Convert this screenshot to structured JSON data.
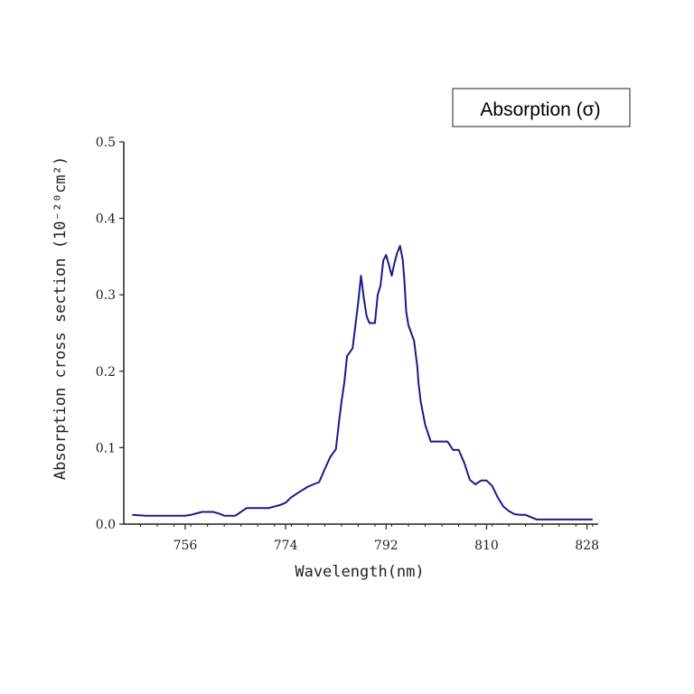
{
  "chart_data": {
    "type": "line",
    "title": "",
    "xlabel": "Wavelength(nm)",
    "ylabel": "Absorption cross section (10⁻²⁰cm²)",
    "xlim": [
      745,
      830
    ],
    "ylim": [
      0,
      0.5
    ],
    "x_ticks": [
      "756",
      "774",
      "792",
      "810",
      "828"
    ],
    "y_ticks": [
      "0.0",
      "0.1",
      "0.2",
      "0.3",
      "0.4",
      "0.5"
    ],
    "grid": false,
    "legend_position": "top-right",
    "series": [
      {
        "name": "Absorption (σ)",
        "color": "#1a1a8c",
        "x": [
          746.5,
          749,
          752,
          754,
          756,
          757,
          759,
          761,
          762,
          763,
          765,
          767,
          769,
          771,
          773,
          774,
          775,
          776,
          778,
          780,
          781,
          782,
          783,
          783.5,
          784,
          784.5,
          785,
          786,
          786.5,
          787,
          787.5,
          788,
          788.5,
          789,
          789.5,
          790,
          790.5,
          791,
          791.5,
          792,
          792.5,
          793,
          793.5,
          794,
          794.5,
          795,
          795.3,
          795.6,
          796,
          797,
          797.6,
          797.8,
          798.2,
          799,
          800,
          801,
          802,
          803,
          804,
          805,
          806,
          807,
          808,
          809,
          810,
          811,
          812,
          813,
          814,
          815,
          816,
          817,
          818,
          819,
          820,
          821,
          822,
          823,
          824,
          825,
          826,
          827,
          828,
          829
        ],
        "values": [
          0.012,
          0.011,
          0.011,
          0.011,
          0.011,
          0.012,
          0.016,
          0.016,
          0.014,
          0.011,
          0.011,
          0.021,
          0.021,
          0.021,
          0.025,
          0.028,
          0.035,
          0.04,
          0.049,
          0.055,
          0.072,
          0.088,
          0.098,
          0.13,
          0.16,
          0.185,
          0.22,
          0.23,
          0.26,
          0.29,
          0.325,
          0.296,
          0.272,
          0.263,
          0.263,
          0.263,
          0.3,
          0.312,
          0.345,
          0.352,
          0.339,
          0.325,
          0.342,
          0.355,
          0.364,
          0.345,
          0.315,
          0.278,
          0.26,
          0.24,
          0.205,
          0.185,
          0.16,
          0.13,
          0.108,
          0.108,
          0.108,
          0.108,
          0.097,
          0.097,
          0.08,
          0.058,
          0.052,
          0.057,
          0.057,
          0.05,
          0.035,
          0.023,
          0.017,
          0.013,
          0.012,
          0.012,
          0.009,
          0.006,
          0.006,
          0.006,
          0.006,
          0.006,
          0.006,
          0.006,
          0.006,
          0.006,
          0.006,
          0.006
        ]
      }
    ]
  }
}
